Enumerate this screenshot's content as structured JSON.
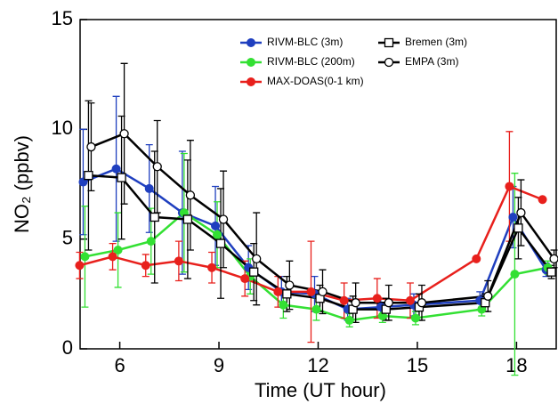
{
  "chart_data": {
    "type": "line",
    "x_label": "Time (UT hour)",
    "y_label": "NO₂ (ppbv)",
    "x": [
      5,
      6,
      7,
      8,
      9,
      10,
      11,
      12,
      13,
      14,
      15,
      17,
      18,
      19
    ],
    "xlim": [
      4.8,
      19.2
    ],
    "xticks": [
      6,
      9,
      12,
      15,
      18
    ],
    "ylim": [
      0,
      15
    ],
    "yticks": [
      0,
      5,
      10,
      15
    ],
    "series": [
      {
        "name": "RIVM-BLC (3m)",
        "color": "#1f3fbf",
        "marker": "filled-circle",
        "values": [
          7.6,
          8.2,
          7.3,
          6.2,
          5.6,
          3.7,
          2.6,
          2.5,
          1.8,
          1.9,
          2.0,
          2.2,
          6.0,
          3.6
        ],
        "errors": [
          2.4,
          3.3,
          2.0,
          2.8,
          1.8,
          1.0,
          0.7,
          0.8,
          0.5,
          0.4,
          0.5,
          0.4,
          1.4,
          0.3
        ]
      },
      {
        "name": "RIVM-BLC (200m)",
        "color": "#33e033",
        "marker": "filled-circle",
        "values": [
          4.2,
          4.5,
          4.9,
          6.2,
          5.2,
          3.3,
          2.0,
          1.8,
          1.3,
          1.5,
          1.4,
          1.8,
          3.4,
          3.7
        ],
        "errors": [
          2.3,
          1.7,
          1.5,
          2.7,
          1.5,
          0.8,
          0.6,
          0.5,
          0.3,
          0.3,
          0.3,
          0.3,
          4.6,
          0.3
        ]
      },
      {
        "name": "MAX-DOAS(0-1 km)",
        "color": "#e8201c",
        "marker": "filled-circle",
        "values": [
          3.8,
          4.2,
          3.8,
          4.0,
          3.7,
          3.2,
          2.6,
          2.6,
          2.2,
          2.3,
          2.2,
          4.1,
          7.4,
          6.8
        ],
        "errors": [
          0.6,
          0.6,
          0.5,
          0.9,
          0.7,
          0.8,
          0.7,
          2.3,
          0.8,
          0.9,
          0.8,
          0,
          2.5,
          0
        ]
      },
      {
        "name": "Bremen (3m)",
        "color": "#000000",
        "marker": "open-square",
        "values": [
          7.9,
          7.8,
          6.0,
          5.9,
          4.8,
          3.5,
          2.5,
          2.3,
          1.8,
          1.8,
          1.9,
          2.1,
          5.5,
          3.5
        ],
        "errors": [
          3.4,
          2.8,
          3.0,
          2.7,
          2.5,
          1.3,
          0.8,
          0.6,
          0.6,
          0.5,
          0.6,
          0.4,
          1.4,
          0.3
        ]
      },
      {
        "name": "EMPA (3m)",
        "color": "#000000",
        "marker": "open-circle",
        "values": [
          9.2,
          9.8,
          8.3,
          7.0,
          5.9,
          4.1,
          2.9,
          2.6,
          2.1,
          2.1,
          2.1,
          2.4,
          6.2,
          4.1
        ],
        "errors": [
          2.0,
          3.2,
          2.1,
          2.5,
          2.2,
          2.1,
          1.1,
          1.0,
          0.9,
          0.8,
          0.8,
          0.7,
          1.5,
          0.4
        ]
      }
    ]
  }
}
